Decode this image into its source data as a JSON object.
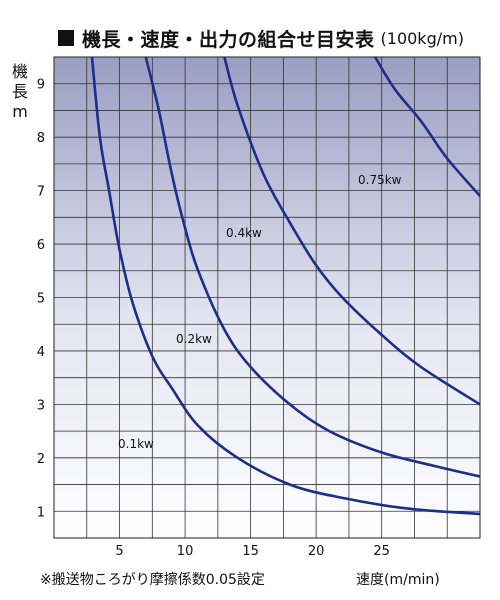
{
  "title": {
    "main": "機長・速度・出力の組合せ目安表",
    "unit": "(100kg/m)",
    "marker_icon": "black-square"
  },
  "note": "※搬送物ころがり摩擦係数0.05設定",
  "chart_data": {
    "type": "line",
    "title": "機長・速度・出力の組合せ目安表 (100kg/m)",
    "xlabel": "速度(m/min)",
    "ylabel": [
      "機",
      "長",
      "m"
    ],
    "xlim": [
      0,
      32.5
    ],
    "ylim": [
      0.5,
      9.5
    ],
    "xticks": [
      5,
      10,
      15,
      20,
      25
    ],
    "yticks": [
      1,
      2,
      3,
      4,
      5,
      6,
      7,
      8,
      9
    ],
    "grid": true,
    "series": [
      {
        "name": "0.1kw",
        "x": [
          2.9,
          3.5,
          4.2,
          5.0,
          6.0,
          7.5,
          9.0,
          11.0,
          14.0,
          18.0,
          22.0,
          27.0,
          32.5
        ],
        "y": [
          9.5,
          8.0,
          7.0,
          5.9,
          4.9,
          3.9,
          3.3,
          2.6,
          2.0,
          1.5,
          1.25,
          1.05,
          0.95
        ]
      },
      {
        "name": "0.2kw",
        "x": [
          7.0,
          8.0,
          9.0,
          10.0,
          11.0,
          13.0,
          15.0,
          18.0,
          21.0,
          25.0,
          29.0,
          32.5
        ],
        "y": [
          9.5,
          8.5,
          7.3,
          6.3,
          5.5,
          4.4,
          3.7,
          3.0,
          2.5,
          2.1,
          1.85,
          1.65
        ]
      },
      {
        "name": "0.4kw",
        "x": [
          13.0,
          14.0,
          16.0,
          18.0,
          20.0,
          22.0,
          25.0,
          28.0,
          32.5
        ],
        "y": [
          9.5,
          8.6,
          7.3,
          6.4,
          5.6,
          5.0,
          4.3,
          3.7,
          3.0
        ]
      },
      {
        "name": "0.75kw",
        "x": [
          24.5,
          26.0,
          28.0,
          30.0,
          32.5
        ],
        "y": [
          9.5,
          8.9,
          8.3,
          7.6,
          6.9
        ]
      }
    ],
    "line_color": "#1b2e8a"
  }
}
